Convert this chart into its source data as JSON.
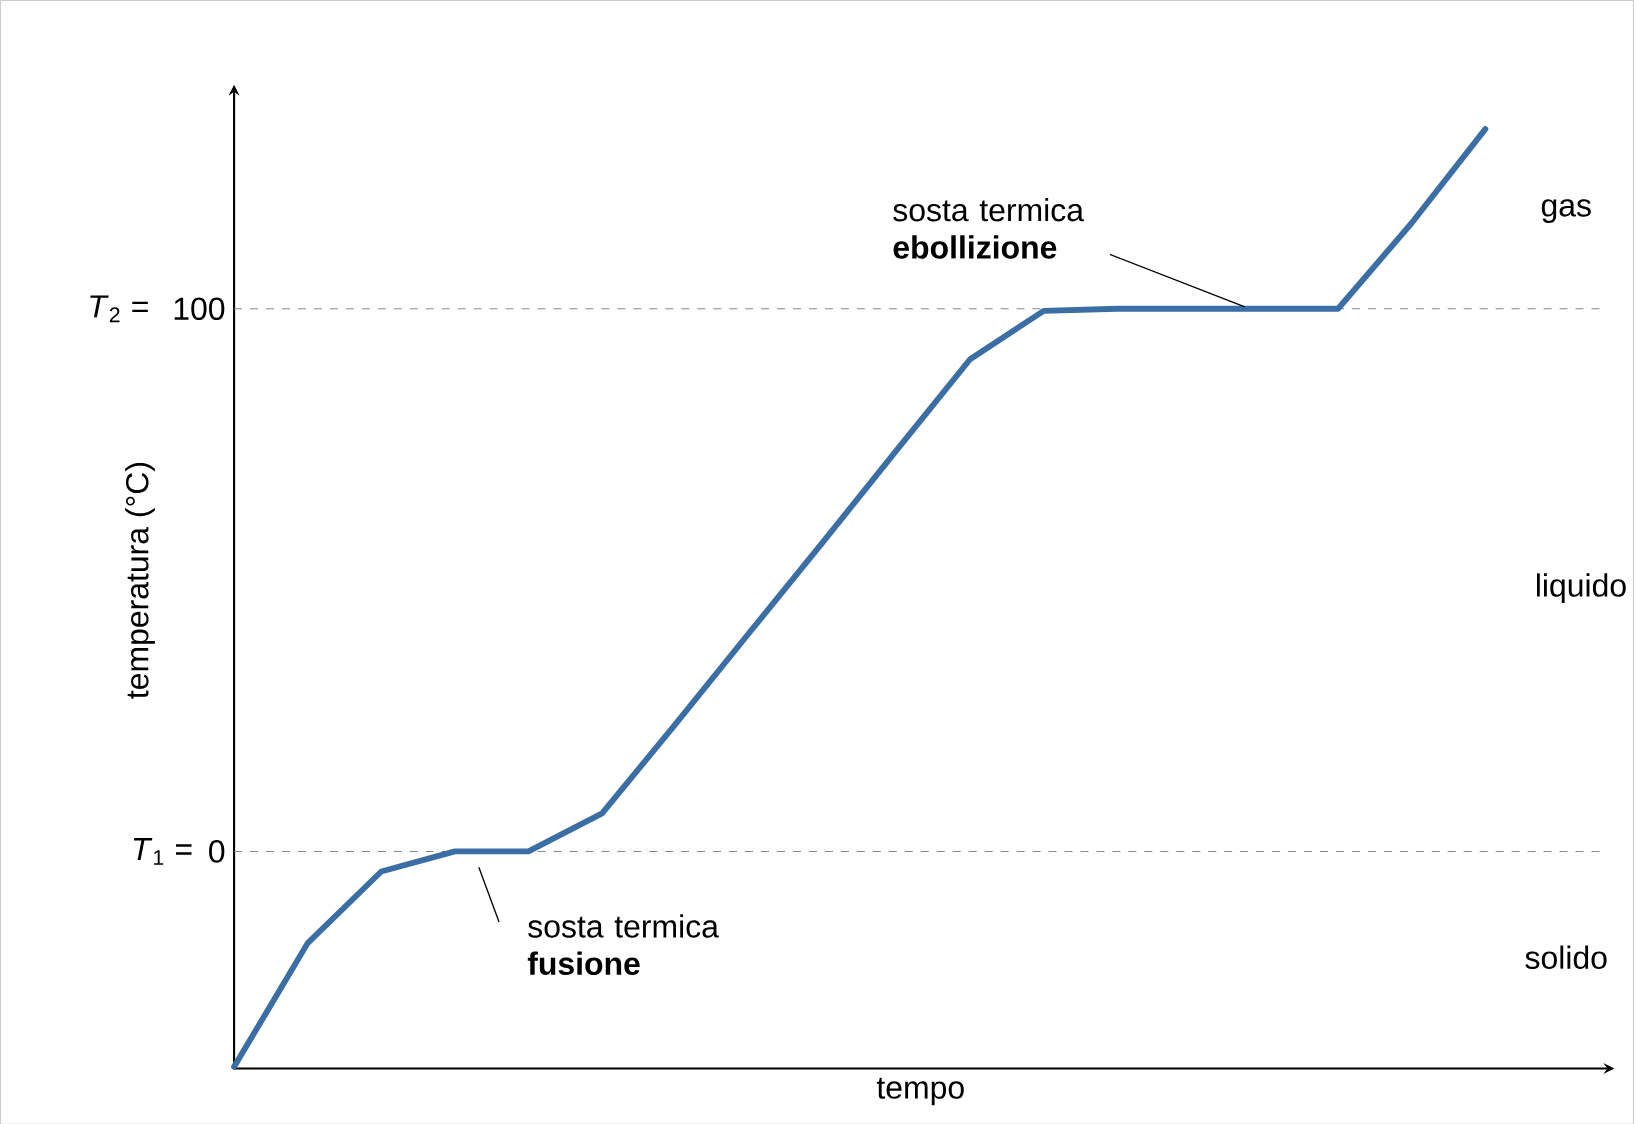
{
  "chart_data": {
    "type": "line",
    "xlabel": "tempo",
    "ylabel": "temperatura (°C)",
    "categories": [
      null,
      null,
      null,
      null,
      null,
      null,
      null,
      null,
      null,
      null,
      null,
      null,
      null,
      null,
      null,
      null,
      null,
      null
    ],
    "series": [
      {
        "color": "#3a6ea5",
        "values": [
          -39.7,
          -16.9,
          -3.7,
          0,
          0,
          7,
          23.5,
          40.3,
          57,
          73.9,
          90.7,
          99.6,
          100,
          100,
          100,
          100,
          115.8,
          133.1
        ]
      }
    ],
    "ylim": [
      -40,
      140
    ],
    "yticks": [
      0,
      100
    ],
    "ref_lines": [
      {
        "axis": "y",
        "value": 0,
        "color": "#888888",
        "line_style": "dashed"
      },
      {
        "axis": "y",
        "value": 100,
        "color": "#888888",
        "line_style": "dashed"
      }
    ],
    "annotations": [
      {
        "text": "sosta termica **fusione**",
        "y": 0
      },
      {
        "text": "sosta termica **ebollizione**",
        "y": 100
      },
      "gas",
      "liquido",
      "solido",
      "*T*$_{1}$ =",
      "*T*$_{2}$ ="
    ]
  }
}
